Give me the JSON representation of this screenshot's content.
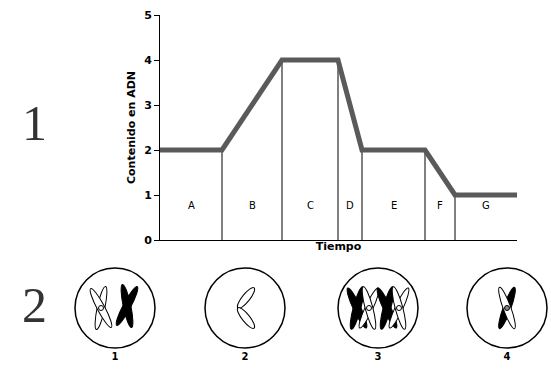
{
  "chart_data": {
    "type": "line",
    "y_label": "Contenido en ADN",
    "x_label": "Tiempo",
    "x": [
      0,
      6.2,
      12.2,
      17.8,
      20.2,
      26.5,
      29.5,
      35.7
    ],
    "values": [
      2,
      2,
      4,
      4,
      2,
      2,
      1,
      1
    ],
    "color": "#5a5a5a",
    "xlim": [
      0,
      35.7
    ],
    "ylim": [
      0,
      5
    ],
    "yticks": [
      0,
      1,
      2,
      3,
      4,
      5
    ],
    "tick_labels": "y",
    "grid": false,
    "phases": [
      {
        "label": "A",
        "start": 0,
        "end": 6.2
      },
      {
        "label": "B",
        "start": 6.2,
        "end": 12.2
      },
      {
        "label": "C",
        "start": 12.2,
        "end": 17.8
      },
      {
        "label": "D",
        "start": 17.8,
        "end": 20.2
      },
      {
        "label": "E",
        "start": 20.2,
        "end": 26.5
      },
      {
        "label": "F",
        "start": 26.5,
        "end": 29.5
      },
      {
        "label": "G",
        "start": 29.5,
        "end": 35.7
      }
    ]
  },
  "figure": {
    "panel_labels": [
      "1",
      "2"
    ],
    "cells": [
      {
        "label": "1"
      },
      {
        "label": "2"
      },
      {
        "label": "3"
      },
      {
        "label": "4"
      }
    ]
  }
}
